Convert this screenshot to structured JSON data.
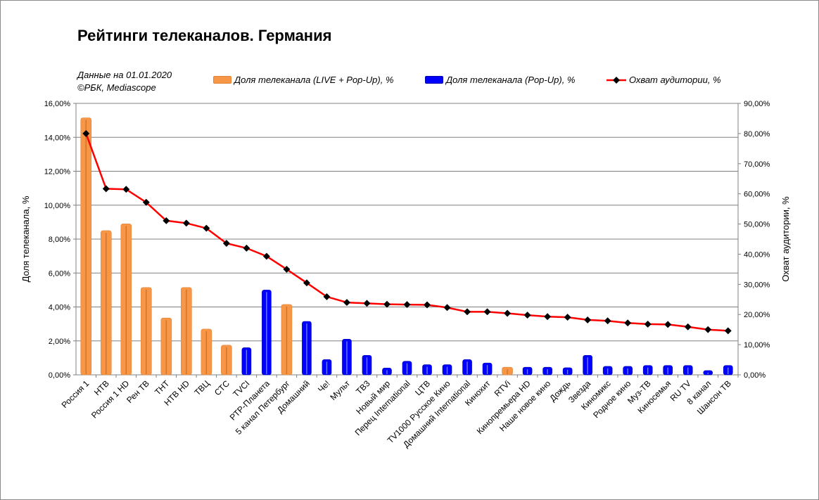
{
  "title": "Рейтинги телеканалов. Германия",
  "note": [
    "Данные на 01.01.2020",
    "©РБК, Mediascope"
  ],
  "legend": {
    "live": "Доля телеканала (LIVE + Pop-Up), %",
    "popup": "Доля телеканала (Pop-Up), %",
    "reach": "Охват аудитории, %"
  },
  "colors": {
    "live": "#f79646",
    "popup": "#0000ff",
    "reach": "#ff0000",
    "marker": "#000000"
  },
  "chart_data": {
    "type": "bar",
    "ylabel": "Доля телеканала, %",
    "y2label": "Охват аудитории, %",
    "ylim": [
      0,
      16
    ],
    "y2lim": [
      0,
      90
    ],
    "yticks": [
      "0,00%",
      "2,00%",
      "4,00%",
      "6,00%",
      "8,00%",
      "10,00%",
      "12,00%",
      "14,00%",
      "16,00%"
    ],
    "y2ticks": [
      "0,00%",
      "10,00%",
      "20,00%",
      "30,00%",
      "40,00%",
      "50,00%",
      "60,00%",
      "70,00%",
      "80,00%",
      "90,00%"
    ],
    "grid": true,
    "categories": [
      "Россия 1",
      "НТВ",
      "Россия 1 HD",
      "Рен ТВ",
      "ТНТ",
      "НТВ HD",
      "ТВЦ",
      "СТС",
      "TVCI",
      "РТР-Планета",
      "5 канал Петербург",
      "Домашний",
      "Че!",
      "Мульт",
      "ТВ3",
      "Новый мир",
      "Перец International",
      "ЦТВ",
      "TV1000 Русское Кино",
      "Домашний International",
      "Кинохит",
      "RTVi",
      "Кинопремьера HD",
      "Наше новое кино",
      "Дождь",
      "Звезда",
      "Киномикс",
      "Родное кино",
      "Муз-ТВ",
      "Киносемья",
      "RU TV",
      "8 канал",
      "Шансон ТВ"
    ],
    "bar_type": [
      "live",
      "live",
      "live",
      "live",
      "live",
      "live",
      "live",
      "live",
      "popup",
      "popup",
      "live",
      "popup",
      "popup",
      "popup",
      "popup",
      "popup",
      "popup",
      "popup",
      "popup",
      "popup",
      "popup",
      "live",
      "popup",
      "popup",
      "popup",
      "popup",
      "popup",
      "popup",
      "popup",
      "popup",
      "popup",
      "popup",
      "popup"
    ],
    "series": [
      {
        "name": "Доля телеканала, %",
        "values": [
          15.15,
          8.5,
          8.9,
          5.15,
          3.35,
          5.15,
          2.7,
          1.75,
          1.6,
          5.0,
          4.15,
          3.15,
          0.9,
          2.1,
          1.15,
          0.4,
          0.8,
          0.6,
          0.6,
          0.9,
          0.7,
          0.45,
          0.45,
          0.45,
          0.42,
          1.15,
          0.5,
          0.5,
          0.55,
          0.55,
          0.55,
          0.25,
          0.55
        ]
      },
      {
        "name": "Охват аудитории, %",
        "values": [
          80.0,
          61.7,
          61.5,
          57.2,
          51.1,
          50.3,
          48.6,
          43.6,
          42.0,
          39.3,
          35.0,
          30.5,
          25.9,
          24.0,
          23.7,
          23.4,
          23.3,
          23.2,
          22.3,
          20.9,
          20.9,
          20.4,
          19.8,
          19.3,
          19.1,
          18.2,
          17.9,
          17.2,
          16.8,
          16.7,
          15.9,
          15.0,
          14.6
        ]
      }
    ]
  }
}
